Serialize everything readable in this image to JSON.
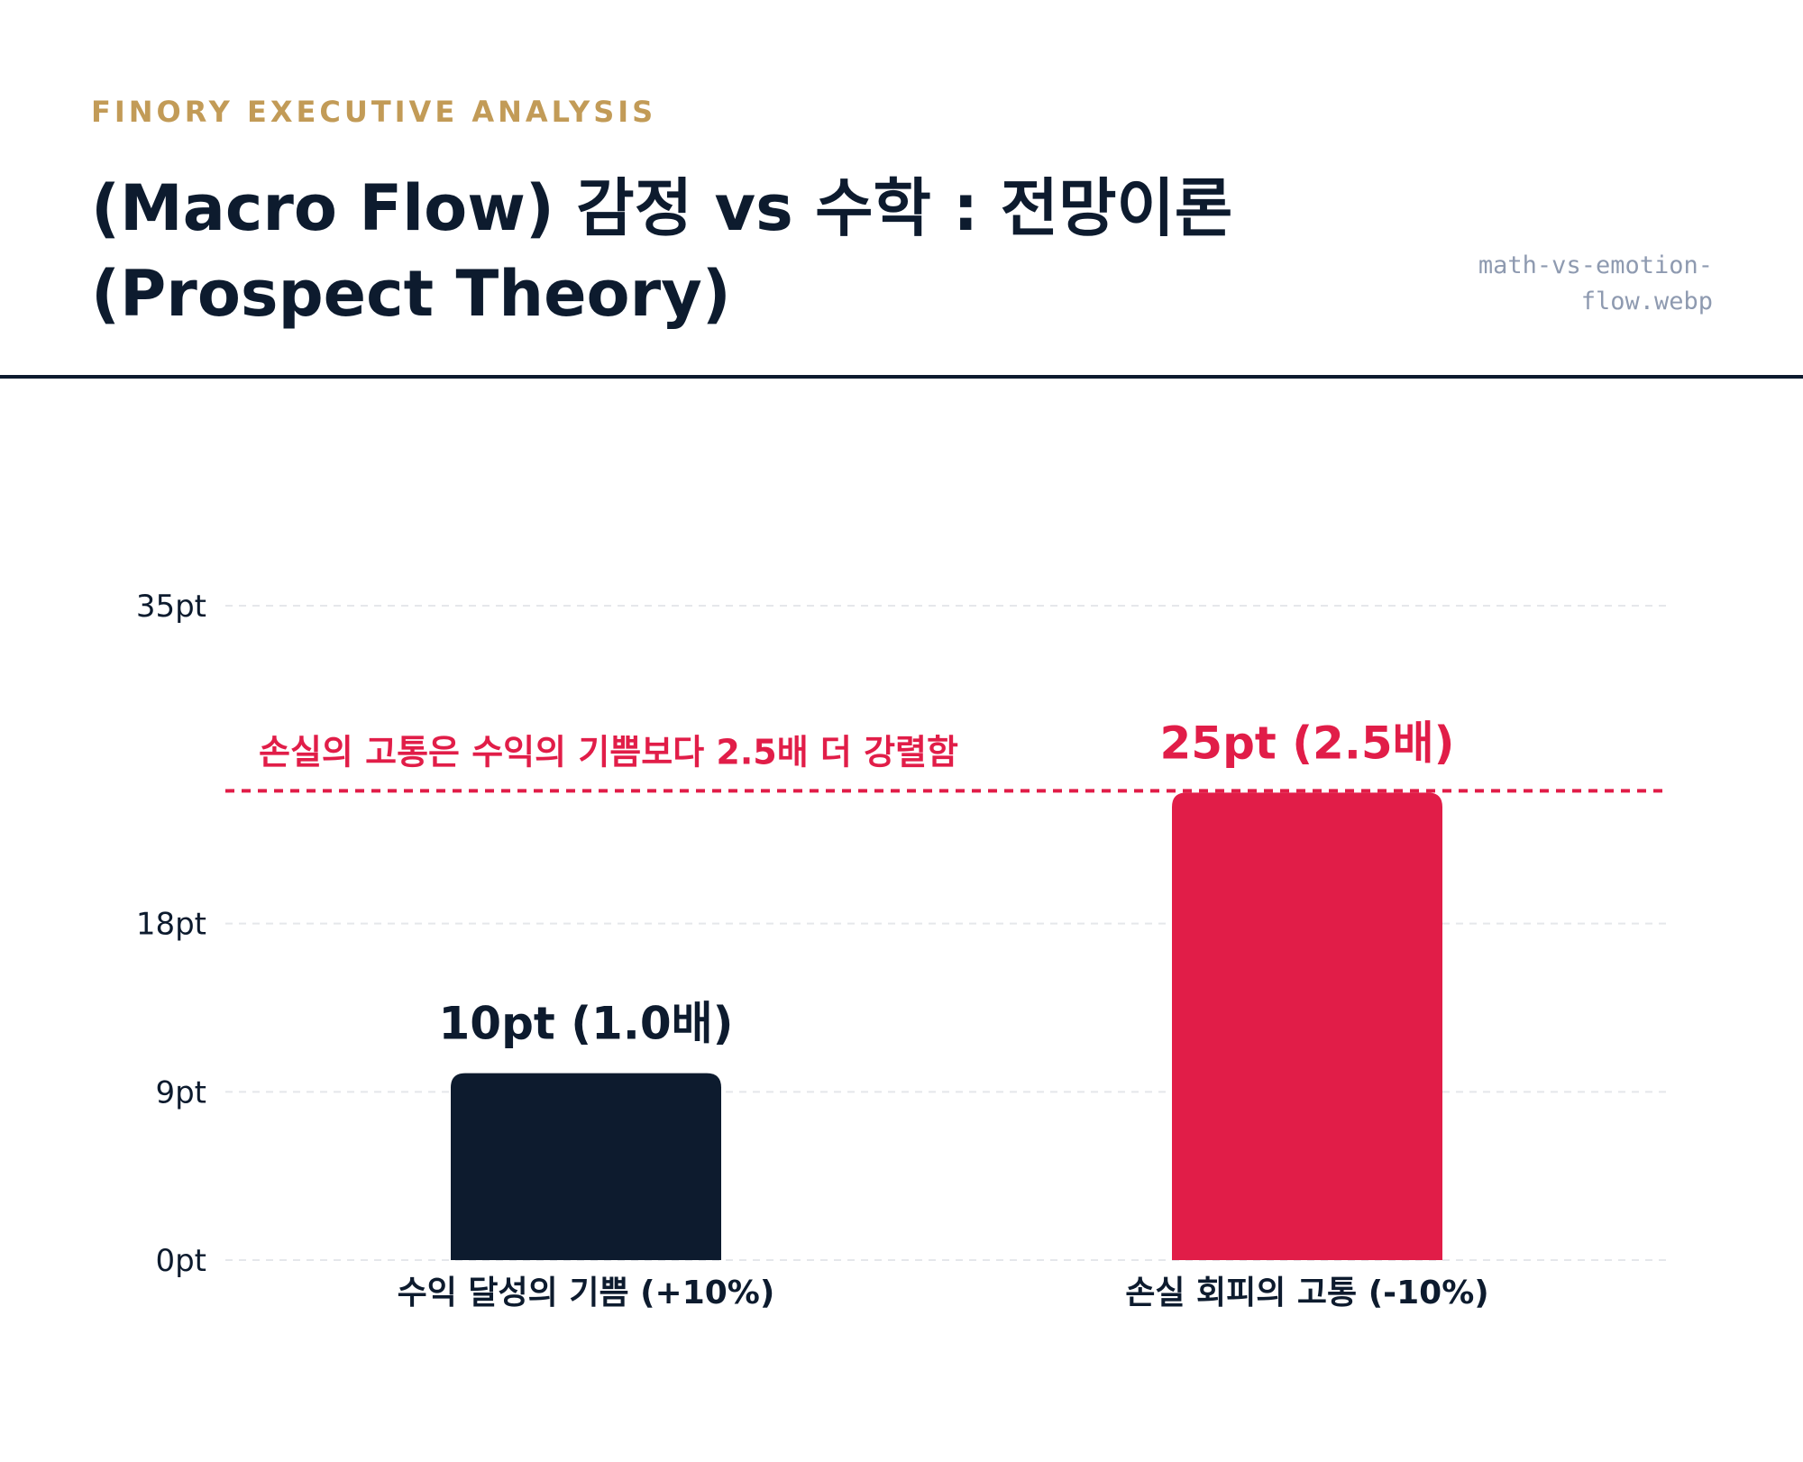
{
  "header": {
    "eyebrow": "FINORY EXECUTIVE ANALYSIS",
    "title_line1": "(Macro Flow) 감정 vs 수학 : 전망이론",
    "title_line2": "(Prospect Theory)",
    "filename_line1": "math-vs-emotion-",
    "filename_line2": "flow.webp"
  },
  "colors": {
    "accent_gold": "#c29b57",
    "navy": "#0d1b2e",
    "red": "#e11d48",
    "muted": "#8e9ab0",
    "grid": "#e5e7eb"
  },
  "chart_data": {
    "type": "bar",
    "categories": [
      "수익 달성의 기쁨 (+10%)",
      "손실 회피의 고통 (-10%)"
    ],
    "values": [
      10,
      25
    ],
    "value_labels": [
      "10pt (1.0배)",
      "25pt (2.5배)"
    ],
    "bar_colors": [
      "#0d1b2e",
      "#e11d48"
    ],
    "yticks": [
      0,
      9,
      18,
      35
    ],
    "ytick_labels": [
      "0pt",
      "9pt",
      "18pt",
      "35pt"
    ],
    "ylim": [
      0,
      35
    ],
    "grid": true,
    "reference_line": {
      "value": 25,
      "label": "손실의 고통은 수익의 기쁨보다 2.5배 더 강렬함",
      "color": "#e11d48"
    }
  }
}
